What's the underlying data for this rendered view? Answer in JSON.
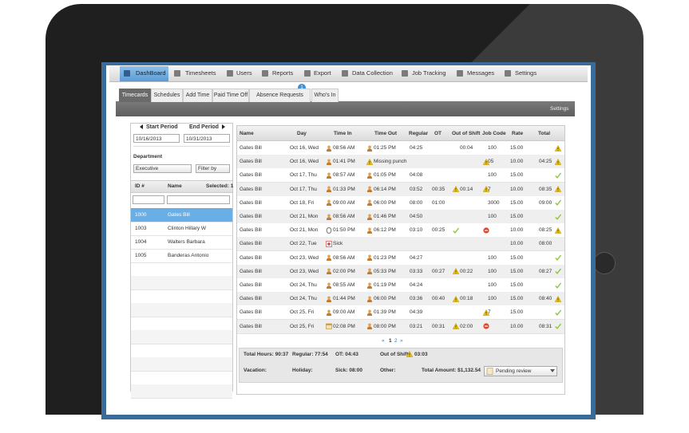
{
  "nav": [
    "DashBoard",
    "Timesheets",
    "Users",
    "Reports",
    "Export",
    "Data Collection",
    "Job Tracking",
    "Messages",
    "Settings"
  ],
  "tabs": [
    "Timecards",
    "Schedules",
    "Add Time",
    "Paid Time Off",
    "Absence Requests",
    "Who's In"
  ],
  "tab_badge": "1",
  "settings_link": "Settings",
  "period": {
    "start_label": "Start Period",
    "end_label": "End Period",
    "start": "10/16/2013",
    "end": "10/31/2013"
  },
  "department": {
    "label": "Department",
    "value": "Executive",
    "filter": "Filter by"
  },
  "employees": {
    "columns": [
      "ID #",
      "Name"
    ],
    "selected": "Selected: 1",
    "rows": [
      [
        "1000",
        "Gates Bill"
      ],
      [
        "1003",
        "Clinton Hillary W"
      ],
      [
        "1004",
        "Walters Barbara"
      ],
      [
        "1005",
        "Banderas Antonio"
      ]
    ]
  },
  "table": {
    "columns": [
      "Name",
      "Day",
      "Time In",
      "Time Out",
      "Regular",
      "OT",
      "Out of Shift",
      "Job Code",
      "Rate",
      "Total"
    ],
    "rows": [
      [
        "Gates Bill",
        "Oct 16, Wed",
        "08:56 AM",
        "01:25 PM",
        "04:25",
        null,
        "00:04",
        "100",
        "15.00",
        null
      ],
      [
        "Gates Bill",
        "Oct 16, Wed",
        "01:41 PM",
        "Missing punch",
        null,
        null,
        null,
        "05",
        "10.00",
        "04:25"
      ],
      [
        "Gates Bill",
        "Oct 17, Thu",
        "08:57 AM",
        "01:05 PM",
        "04:08",
        null,
        null,
        "100",
        "15.00",
        null
      ],
      [
        "Gates Bill",
        "Oct 17, Thu",
        "01:33 PM",
        "06:14 PM",
        "03:52",
        "00:35",
        "00:14",
        "7",
        "10.00",
        "08:35"
      ],
      [
        "Gates Bill",
        "Oct 18, Fri",
        "09:00 AM",
        "06:00 PM",
        "08:00",
        "01:00",
        null,
        "3000",
        "15.00",
        "09:00"
      ],
      [
        "Gates Bill",
        "Oct 21, Mon",
        "08:56 AM",
        "01:46 PM",
        "04:50",
        null,
        null,
        "100",
        "15.00",
        null
      ],
      [
        "Gates Bill",
        "Oct 21, Mon",
        "01:50 PM",
        "06:12 PM",
        "03:10",
        "00:25",
        null,
        null,
        "10.00",
        "08:25"
      ],
      [
        "Gates Bill",
        "Oct 22, Tue",
        "Sick",
        null,
        null,
        null,
        null,
        null,
        "10.00",
        "08:00"
      ],
      [
        "Gates Bill",
        "Oct 23, Wed",
        "08:56 AM",
        "01:23 PM",
        "04:27",
        null,
        null,
        "100",
        "15.00",
        null
      ],
      [
        "Gates Bill",
        "Oct 23, Wed",
        "02:00 PM",
        "05:33 PM",
        "03:33",
        "00:27",
        "00:22",
        "100",
        "15.00",
        "08:27"
      ],
      [
        "Gates Bill",
        "Oct 24, Thu",
        "08:55 AM",
        "01:19 PM",
        "04:24",
        null,
        null,
        "100",
        "15.00",
        null
      ],
      [
        "Gates Bill",
        "Oct 24, Thu",
        "01:44 PM",
        "06:00 PM",
        "03:36",
        "00:40",
        "00:18",
        "100",
        "15.00",
        "08:40"
      ],
      [
        "Gates Bill",
        "Oct 25, Fri",
        "09:00 AM",
        "01:39 PM",
        "04:39",
        null,
        null,
        "7",
        "15.00",
        null
      ],
      [
        "Gates Bill",
        "Oct 25, Fri",
        "02:08 PM",
        "08:00 PM",
        "03:21",
        "00:31",
        "02:00",
        null,
        "10.00",
        "08:31"
      ]
    ]
  },
  "pagination": [
    "«",
    "1",
    "2",
    "»"
  ],
  "summary": {
    "row1": [
      "Total Hours: 90:37",
      "Regular: 77:54",
      "OT: 04:43",
      "Out of Shift:",
      "03:03"
    ],
    "row2": [
      "Vacation:",
      "Holiday:",
      "Sick: 08:00",
      "Other:",
      "Total Amount: $1,132.54"
    ]
  },
  "status": "Pending review"
}
